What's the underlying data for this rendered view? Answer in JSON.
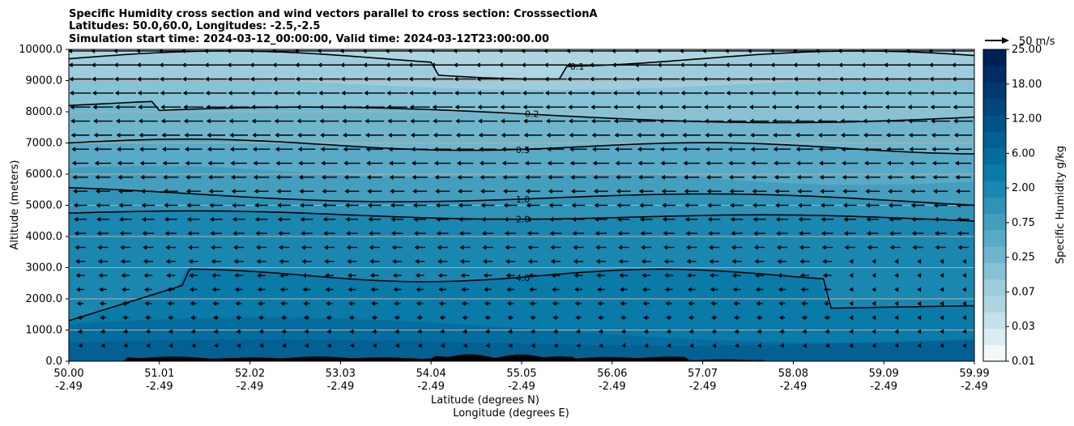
{
  "chart_data": {
    "type": "contour-cross-section",
    "title_lines": [
      "Specific Humidity cross section and wind vectors parallel to cross section: CrosssectionA",
      "Latitudes: 50.0,60.0, Longitudes: -2.5,-2.5",
      "Simulation start time: 2024-03-12_00:00:00, Valid time: 2024-03-12T23:00:00.00"
    ],
    "ylabel": "Altitude (meters)",
    "xlabel_lat": "Latitude (degrees N)",
    "xlabel_lon": "Longitude (degrees E)",
    "ylim": [
      0,
      10000
    ],
    "y_ticks": [
      "0.0",
      "1000.0",
      "2000.0",
      "3000.0",
      "4000.0",
      "5000.0",
      "6000.0",
      "7000.0",
      "8000.0",
      "9000.0",
      "10000.0"
    ],
    "x_ticks_lat": [
      "50.00",
      "51.01",
      "52.02",
      "53.03",
      "54.04",
      "55.05",
      "56.06",
      "57.07",
      "58.08",
      "59.09",
      "59.99"
    ],
    "x_ticks_lon": [
      "-2.49",
      "-2.49",
      "-2.49",
      "-2.49",
      "-2.49",
      "-2.49",
      "-2.49",
      "-2.49",
      "-2.49",
      "-2.49",
      "-2.49"
    ],
    "grid": "horizontal",
    "colorbar": {
      "label": "Specific Humidity g/kg",
      "tick_labels": [
        "0.01",
        "0.03",
        "0.07",
        "0.25",
        "0.75",
        "2.00",
        "6.00",
        "12.00",
        "18.00",
        "25.00"
      ],
      "levels": [
        0.01,
        0.02,
        0.03,
        0.05,
        0.07,
        0.1,
        0.25,
        0.5,
        0.75,
        1.0,
        2.0,
        4.0,
        6.0,
        9.0,
        12.0,
        15.0,
        18.0,
        21.0,
        25.0
      ],
      "colors": [
        "#f3f9fb",
        "#dbedf2",
        "#c3e2eb",
        "#aed6e2",
        "#9dcddc",
        "#86c2d5",
        "#6fb6cd",
        "#58aac6",
        "#449ebe",
        "#2f93b7",
        "#1a87b0",
        "#0a7aa8",
        "#056d9e",
        "#036093",
        "#025488",
        "#02467c",
        "#023a70",
        "#012d64",
        "#012058"
      ]
    },
    "contour_lines": [
      {
        "level": "0.1",
        "label": "0.1"
      },
      {
        "level": "0.2",
        "label": "0.2"
      },
      {
        "level": "0.5",
        "label": "0.5"
      },
      {
        "level": "1.0",
        "label": "1.0"
      },
      {
        "level": "2.0",
        "label": "2.0"
      },
      {
        "level": "4.0",
        "label": "4.0"
      }
    ],
    "quiver_key": {
      "label": "50 m/s",
      "value": 50
    },
    "wind_direction": "southward (negative latitude direction), strongest aloft",
    "terrain": "black filled orography near surface"
  }
}
